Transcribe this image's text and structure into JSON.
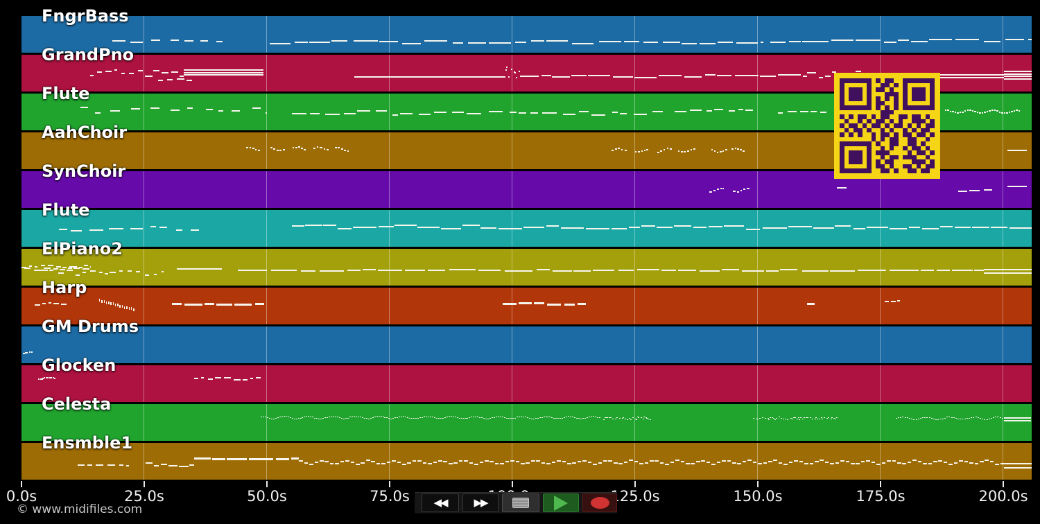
{
  "app": {
    "watermark": "© www.midifiles.com",
    "background": "#000000"
  },
  "style": {
    "note_color": "#f7f6ee",
    "grid_color": "rgba(255,255,255,0.38)"
  },
  "timeline": {
    "unit": "s",
    "ticks": [
      {
        "s": 0,
        "label": "0.0s"
      },
      {
        "s": 25,
        "label": "25.0s"
      },
      {
        "s": 50,
        "label": "50.0s"
      },
      {
        "s": 75,
        "label": "75.0s"
      },
      {
        "s": 100,
        "label": "100.0s"
      },
      {
        "s": 125,
        "label": "125.0s"
      },
      {
        "s": 150,
        "label": "150.0s"
      },
      {
        "s": 175,
        "label": "175.0s"
      },
      {
        "s": 200,
        "label": "200.0s"
      }
    ]
  },
  "transport": {
    "rewind_glyph": "◀◀",
    "ff_glyph": "▶▶",
    "buttons": [
      "rewind",
      "fast-forward",
      "stop",
      "play",
      "record"
    ],
    "stop_color": "#9c9c9c",
    "play_color": "#4fb94f",
    "record_color": "#d13232"
  },
  "qr": {
    "bg": "#f6d516",
    "fg": "#40105e",
    "matrix": [
      "111111101011001111111",
      "100000100110101000001",
      "101110101101001011101",
      "101110100011101011101",
      "101110101010101011101",
      "100000101100101000001",
      "111111101010101111111",
      "000000000111000000000",
      "101011010110011011010",
      "010010101101010011101",
      "101101011010110101011",
      "010110100101001010110",
      "101010010110101101101",
      "000000010101100110010",
      "111111101001100110100",
      "100000100101001011010",
      "101110101110000101101",
      "101110100101101110010",
      "101110101011000011101",
      "100000101101001101011",
      "111111100110100110110"
    ]
  },
  "tracks": [
    {
      "name": "FngrBass",
      "color": "#1d6ba4",
      "phrases": [
        {
          "s": "dashes",
          "a": 18.5,
          "b": 41,
          "y": 36,
          "amp": 3,
          "d": [
            1.2,
            2.8
          ],
          "g": [
            0.6,
            2.2
          ]
        },
        {
          "s": "dashes",
          "a": 50.5,
          "b": 151,
          "y": 37,
          "amp": 2.5,
          "d": [
            2,
            5
          ],
          "g": [
            0.2,
            1.2
          ]
        },
        {
          "s": "dashes",
          "a": 152.5,
          "b": 205.7,
          "y": 35,
          "amp": 2,
          "d": [
            2,
            6
          ],
          "g": [
            0.2,
            1
          ]
        }
      ]
    },
    {
      "name": "GrandPno",
      "color": "#ad1240",
      "phrases": [
        {
          "s": "dashes",
          "a": 14,
          "b": 33,
          "y": 25,
          "amp": 5,
          "d": [
            0.5,
            1.6
          ],
          "g": [
            0.2,
            0.8
          ]
        },
        {
          "s": "chord",
          "a": 33,
          "b": 49.3,
          "y": 21,
          "rows": 3,
          "rg": 3.5
        },
        {
          "s": "dashes",
          "a": 27.8,
          "b": 35,
          "y": 36,
          "amp": 2,
          "d": [
            0.8,
            2
          ],
          "g": [
            0.4,
            1
          ]
        },
        {
          "s": "line",
          "a": 67.7,
          "b": 98.5,
          "y": 31
        },
        {
          "s": "dots",
          "a": 98.6,
          "b": 101.3,
          "y": 25,
          "amp": 9
        },
        {
          "s": "dashes",
          "a": 101.5,
          "b": 160,
          "y": 30,
          "amp": 2,
          "d": [
            2,
            5
          ],
          "g": [
            0.15,
            0.8
          ]
        },
        {
          "s": "dashes",
          "a": 160,
          "b": 171,
          "y": 26,
          "amp": 6,
          "d": [
            0.6,
            1.8
          ],
          "g": [
            0.2,
            0.7
          ]
        },
        {
          "s": "chord",
          "a": 171,
          "b": 200,
          "y": 28,
          "rows": 2,
          "rg": 4
        },
        {
          "s": "chord",
          "a": 200,
          "b": 205.7,
          "y": 23,
          "rows": 4,
          "rg": 3.5
        }
      ]
    },
    {
      "name": "Flute",
      "color": "#20a42e",
      "phrases": [
        {
          "s": "dashes",
          "a": 12,
          "b": 50,
          "y": 23,
          "amp": 4,
          "d": [
            0.8,
            2.2
          ],
          "g": [
            1,
            3
          ]
        },
        {
          "s": "dashes",
          "a": 55,
          "b": 131,
          "y": 27,
          "amp": 3,
          "d": [
            1,
            3
          ],
          "g": [
            0.3,
            1.5
          ]
        },
        {
          "s": "dashes",
          "a": 133,
          "b": 149,
          "y": 24,
          "amp": 3,
          "d": [
            1,
            2.5
          ],
          "g": [
            0.3,
            1.2
          ]
        },
        {
          "s": "dashes",
          "a": 154,
          "b": 164,
          "y": 25,
          "amp": 3,
          "d": [
            0.8,
            2
          ],
          "g": [
            0.3,
            1
          ]
        },
        {
          "s": "wave",
          "a": 188,
          "b": 203.5,
          "y": 25,
          "amp": 2,
          "d": [
            0.35,
            0.35
          ],
          "g": [
            0.15,
            0.15
          ]
        }
      ]
    },
    {
      "name": "AahChoir",
      "color": "#9e6c04",
      "phrases": [
        {
          "s": "wave",
          "a": 45.8,
          "b": 48.7,
          "y": 23,
          "amp": 2.5,
          "d": [
            0.3,
            0.5
          ],
          "g": [
            0.15,
            0.3
          ]
        },
        {
          "s": "wave",
          "a": 50.7,
          "b": 53.6,
          "y": 23,
          "amp": 2.5,
          "d": [
            0.3,
            0.5
          ],
          "g": [
            0.15,
            0.3
          ]
        },
        {
          "s": "wave",
          "a": 55.2,
          "b": 58.1,
          "y": 23,
          "amp": 2.5,
          "d": [
            0.3,
            0.5
          ],
          "g": [
            0.15,
            0.3
          ]
        },
        {
          "s": "wave",
          "a": 59.5,
          "b": 62.4,
          "y": 23,
          "amp": 2.5,
          "d": [
            0.3,
            0.5
          ],
          "g": [
            0.15,
            0.3
          ]
        },
        {
          "s": "wave",
          "a": 63.8,
          "b": 66.7,
          "y": 23,
          "amp": 2.5,
          "d": [
            0.3,
            0.5
          ],
          "g": [
            0.15,
            0.3
          ]
        },
        {
          "s": "wave",
          "a": 120.2,
          "b": 123.1,
          "y": 25,
          "amp": 2.5,
          "d": [
            0.3,
            0.5
          ],
          "g": [
            0.15,
            0.3
          ]
        },
        {
          "s": "wave",
          "a": 124.9,
          "b": 127.8,
          "y": 25,
          "amp": 2.5,
          "d": [
            0.3,
            0.5
          ],
          "g": [
            0.15,
            0.3
          ]
        },
        {
          "s": "wave",
          "a": 129.4,
          "b": 132.3,
          "y": 25,
          "amp": 2.5,
          "d": [
            0.3,
            0.5
          ],
          "g": [
            0.15,
            0.3
          ]
        },
        {
          "s": "wave",
          "a": 133.7,
          "b": 137.2,
          "y": 25,
          "amp": 2.5,
          "d": [
            0.3,
            0.5
          ],
          "g": [
            0.15,
            0.3
          ]
        },
        {
          "s": "wave",
          "a": 140.4,
          "b": 143.3,
          "y": 25,
          "amp": 2.5,
          "d": [
            0.3,
            0.5
          ],
          "g": [
            0.15,
            0.3
          ]
        },
        {
          "s": "wave",
          "a": 144.6,
          "b": 147.5,
          "y": 25,
          "amp": 2.5,
          "d": [
            0.3,
            0.5
          ],
          "g": [
            0.15,
            0.3
          ]
        },
        {
          "s": "line",
          "a": 200.7,
          "b": 204.7,
          "y": 25
        }
      ]
    },
    {
      "name": "SynChoir",
      "color": "#660aaa",
      "phrases": [
        {
          "s": "wave",
          "a": 140.1,
          "b": 143.2,
          "y": 26,
          "amp": 2.5,
          "d": [
            0.3,
            0.5
          ],
          "g": [
            0.15,
            0.3
          ]
        },
        {
          "s": "wave",
          "a": 144.9,
          "b": 147.8,
          "y": 26,
          "amp": 2.5,
          "d": [
            0.3,
            0.5
          ],
          "g": [
            0.15,
            0.3
          ]
        },
        {
          "s": "line",
          "a": 166,
          "b": 168,
          "y": 23
        },
        {
          "s": "dashes",
          "a": 190.8,
          "b": 197.6,
          "y": 28,
          "amp": 2,
          "d": [
            1,
            2.5
          ],
          "g": [
            0.3,
            1
          ]
        },
        {
          "s": "line",
          "a": 200.7,
          "b": 204.7,
          "y": 21
        }
      ]
    },
    {
      "name": "Flute",
      "color": "#1ba8a5",
      "phrases": [
        {
          "s": "dashes",
          "a": 7.6,
          "b": 38,
          "y": 26,
          "amp": 4,
          "d": [
            1,
            3
          ],
          "g": [
            0.5,
            2
          ]
        },
        {
          "s": "dashes",
          "a": 55,
          "b": 205.7,
          "y": 24,
          "amp": 3,
          "d": [
            2,
            5
          ],
          "g": [
            0.1,
            0.5
          ]
        }
      ]
    },
    {
      "name": "ElPiano2",
      "color": "#a3a00c",
      "phrases": [
        {
          "s": "dashes",
          "a": 0,
          "b": 14,
          "y": 24,
          "amp": 2,
          "d": [
            0.6,
            1.6
          ],
          "g": [
            0.2,
            0.8
          ]
        },
        {
          "s": "dashes",
          "a": 0.5,
          "b": 14,
          "y": 28,
          "amp": 2,
          "d": [
            0.6,
            1.6
          ],
          "g": [
            0.2,
            0.8
          ]
        },
        {
          "s": "dashes",
          "a": 4,
          "b": 29,
          "y": 34,
          "amp": 4,
          "d": [
            0.5,
            1.4
          ],
          "g": [
            0.3,
            1
          ]
        },
        {
          "s": "line",
          "a": 31.6,
          "b": 40.8,
          "y": 28
        },
        {
          "s": "dashes",
          "a": 44,
          "b": 196,
          "y": 30,
          "amp": 1.5,
          "d": [
            2.5,
            6
          ],
          "g": [
            0.2,
            1
          ]
        },
        {
          "s": "chord",
          "a": 196,
          "b": 205.7,
          "y": 29,
          "rows": 2,
          "rg": 5
        }
      ]
    },
    {
      "name": "Harp",
      "color": "#b1360a",
      "phrases": [
        {
          "s": "dashes",
          "a": 2.7,
          "b": 9.2,
          "y": 22,
          "amp": 2,
          "d": [
            0.5,
            1.5
          ],
          "g": [
            0.2,
            0.6
          ]
        },
        {
          "s": "gliss",
          "a": 15.8,
          "b": 23.2,
          "y": 16,
          "drop": 14
        },
        {
          "s": "bars",
          "a": 30.6,
          "b": 49.4,
          "y": 22,
          "h": 3,
          "d": [
            1.5,
            4
          ],
          "g": [
            0.3,
            0.8
          ]
        },
        {
          "s": "bars",
          "a": 98,
          "b": 115,
          "y": 22,
          "h": 3,
          "d": [
            1.2,
            3
          ],
          "g": [
            0.4,
            1.2
          ]
        },
        {
          "s": "bars",
          "a": 160,
          "b": 161.5,
          "y": 22,
          "h": 3,
          "d": [
            1.5,
            1.5
          ],
          "g": [
            0.3,
            0.3
          ]
        },
        {
          "s": "dashes",
          "a": 175.7,
          "b": 179.3,
          "y": 19,
          "amp": 2,
          "d": [
            0.4,
            1
          ],
          "g": [
            0.2,
            0.5
          ]
        }
      ]
    },
    {
      "name": "GM Drums",
      "color": "#1d6ba4",
      "phrases": [
        {
          "s": "dots",
          "a": 0.3,
          "b": 2.4,
          "y": 37,
          "amp": 1
        }
      ]
    },
    {
      "name": "Glocken",
      "color": "#ad1240",
      "phrases": [
        {
          "s": "dots",
          "a": 3.4,
          "b": 7.2,
          "y": 18,
          "amp": 1
        },
        {
          "s": "dashes",
          "a": 35.2,
          "b": 49.4,
          "y": 19,
          "amp": 2.5,
          "d": [
            0.5,
            1.5
          ],
          "g": [
            0.2,
            0.8
          ]
        }
      ]
    },
    {
      "name": "Celesta",
      "color": "#20a42e",
      "phrases": [
        {
          "s": "wave",
          "a": 48.7,
          "b": 118,
          "y": 19,
          "amp": 1.5,
          "h": 1,
          "d": [
            0.3,
            0.3
          ],
          "g": [
            0.12,
            0.12
          ]
        },
        {
          "s": "dots",
          "a": 118.5,
          "b": 128,
          "y": 20,
          "amp": 2,
          "h": 1
        },
        {
          "s": "dots",
          "a": 149,
          "b": 166,
          "y": 20,
          "amp": 2,
          "h": 1
        },
        {
          "s": "wave",
          "a": 178,
          "b": 200,
          "y": 20,
          "amp": 1.5,
          "h": 1,
          "d": [
            0.3,
            0.3
          ],
          "g": [
            0.15,
            0.15
          ]
        },
        {
          "s": "chord",
          "a": 200.1,
          "b": 205.6,
          "y": 19,
          "rows": 2,
          "rg": 4
        }
      ]
    },
    {
      "name": "Ensmble1",
      "color": "#9e6c04",
      "phrases": [
        {
          "s": "dashes",
          "a": 11.4,
          "b": 21.9,
          "y": 31,
          "amp": 1.5,
          "d": [
            0.7,
            1.8
          ],
          "g": [
            0.3,
            1
          ]
        },
        {
          "s": "dashes",
          "a": 25.3,
          "b": 35.2,
          "y": 30,
          "amp": 3,
          "d": [
            0.8,
            2
          ],
          "g": [
            0.1,
            0.5
          ]
        },
        {
          "s": "bars",
          "a": 35.2,
          "b": 56.5,
          "y": 22,
          "h": 3,
          "d": [
            2,
            5
          ],
          "g": [
            0.2,
            0.6
          ]
        },
        {
          "s": "wave",
          "a": 56.5,
          "b": 200,
          "y": 27,
          "amp": 2.5,
          "d": [
            0.8,
            0.8
          ],
          "g": [
            0.25,
            0.25
          ]
        },
        {
          "s": "chord",
          "a": 200,
          "b": 205.7,
          "y": 29,
          "rows": 2,
          "rg": 6
        }
      ]
    }
  ]
}
